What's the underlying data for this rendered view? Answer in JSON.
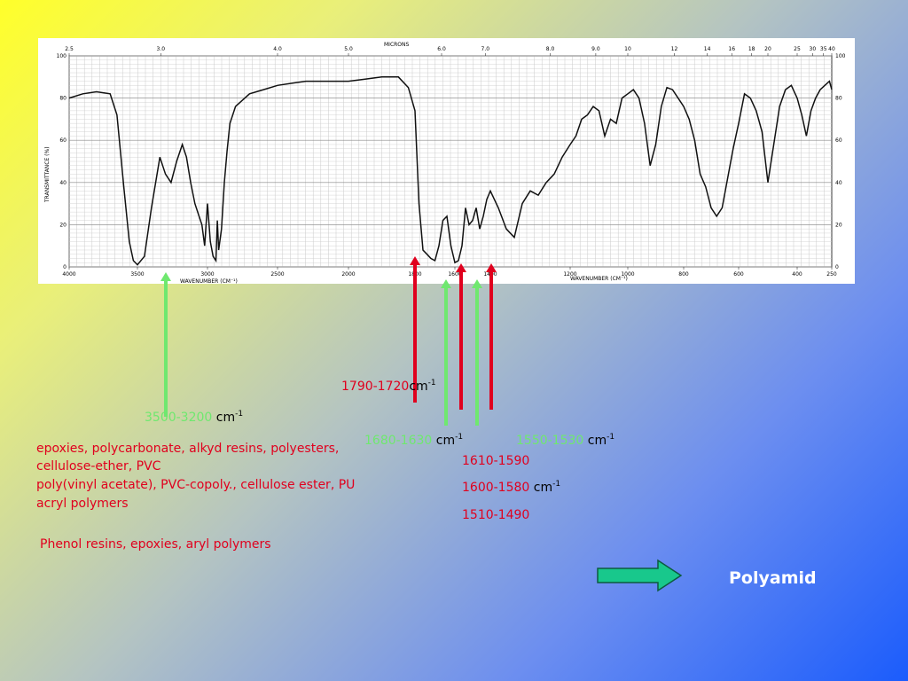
{
  "chart_data": {
    "type": "line",
    "top_axis_title": "MICRONS",
    "bottom_axis_title": "WAVENUMBER (CM⁻¹)",
    "ylabel": "TRANSMITTANCE (%)",
    "top_ticks": [
      "2.5",
      "3.0",
      "4.0",
      "5.0",
      "6.0",
      "7.0",
      "8.0",
      "9.0",
      "10",
      "12",
      "14",
      "16",
      "18",
      "20",
      "25",
      "30",
      "35",
      "40"
    ],
    "bottom_ticks": [
      "4000",
      "3500",
      "3000",
      "2500",
      "2000",
      "1800",
      "1600",
      "1400",
      "1200",
      "1000",
      "800",
      "600",
      "400",
      "250"
    ],
    "y_ticks": [
      "0",
      "20",
      "40",
      "60",
      "80",
      "100"
    ],
    "ylim": [
      0,
      100
    ],
    "grid": true,
    "x_unit": "cm⁻¹",
    "series": [
      {
        "x": [
          4000,
          3900,
          3800,
          3700,
          3650,
          3600,
          3560,
          3530,
          3500,
          3450,
          3400,
          3340,
          3300,
          3260,
          3220,
          3180,
          3150,
          3120,
          3090,
          3060,
          3040,
          3020,
          3000,
          2980,
          2960,
          2940,
          2930,
          2920,
          2900,
          2880,
          2860,
          2840,
          2800,
          2700,
          2600,
          2500,
          2400,
          2300,
          2200,
          2100,
          2000,
          1950,
          1900,
          1850,
          1820,
          1800,
          1780,
          1760,
          1740,
          1720,
          1700,
          1680,
          1660,
          1640,
          1620,
          1600,
          1580,
          1560,
          1540,
          1520,
          1500,
          1480,
          1460,
          1440,
          1420,
          1400,
          1380,
          1360,
          1340,
          1320,
          1300,
          1280,
          1260,
          1240,
          1220,
          1200,
          1180,
          1160,
          1140,
          1120,
          1100,
          1080,
          1060,
          1040,
          1020,
          1000,
          980,
          960,
          940,
          920,
          900,
          880,
          860,
          840,
          820,
          800,
          780,
          760,
          740,
          720,
          700,
          680,
          660,
          640,
          620,
          600,
          580,
          560,
          540,
          520,
          500,
          480,
          460,
          440,
          420,
          400,
          380,
          360,
          340,
          320,
          300,
          280,
          260,
          250
        ],
        "y": [
          80,
          82,
          83,
          82,
          72,
          38,
          12,
          3,
          1,
          5,
          28,
          52,
          44,
          40,
          50,
          58,
          52,
          40,
          30,
          24,
          20,
          10,
          30,
          12,
          5,
          3,
          22,
          8,
          18,
          40,
          55,
          68,
          76,
          82,
          84,
          86,
          87,
          88,
          88,
          88,
          88,
          89,
          90,
          90,
          85,
          74,
          30,
          8,
          6,
          4,
          3,
          10,
          22,
          24,
          10,
          2,
          3,
          10,
          28,
          20,
          22,
          28,
          18,
          24,
          32,
          36,
          28,
          18,
          14,
          30,
          36,
          34,
          40,
          44,
          52,
          58,
          62,
          70,
          72,
          76,
          74,
          62,
          70,
          68,
          80,
          82,
          84,
          80,
          68,
          48,
          58,
          76,
          85,
          84,
          80,
          76,
          70,
          60,
          44,
          38,
          28,
          24,
          28,
          42,
          56,
          68,
          82,
          80,
          74,
          64,
          40,
          58,
          76,
          84,
          86,
          80,
          72,
          62,
          74,
          80,
          84,
          86,
          88,
          84
        ]
      }
    ]
  },
  "annotations": {
    "band1_range": "3500-3200",
    "band1_unit": "cm",
    "band1_exp": "-1",
    "band1_materials_line1": "epoxies, polycarbonate, alkyd resins, polyesters,",
    "band1_materials_line2": "cellulose-ether, PVC",
    "band1_materials_line3": "poly(vinyl acetate), PVC-copoly., cellulose ester, PU",
    "band1_materials_line4": "acryl polymers",
    "band1_materials_line5": "Phenol resins, epoxies, aryl polymers",
    "band2_range": "1790-1720",
    "band2_unit": "cm",
    "band2_exp": "-1",
    "band3_range": "1680-1630",
    "band3_unit": "cm",
    "band3_exp": "-1",
    "band4_range": "1550-1530",
    "band4_unit": "cm",
    "band4_exp": "-1",
    "band5_range": "1610-1590",
    "band6_range": "1600-1580",
    "band6_unit": "cm",
    "band6_exp": "-1",
    "band7_range": "1510-1490",
    "next_label": "Polyamid"
  },
  "colors": {
    "red": "#e0001e",
    "green": "#6fe86f",
    "next_arrow": "#18c88c"
  }
}
